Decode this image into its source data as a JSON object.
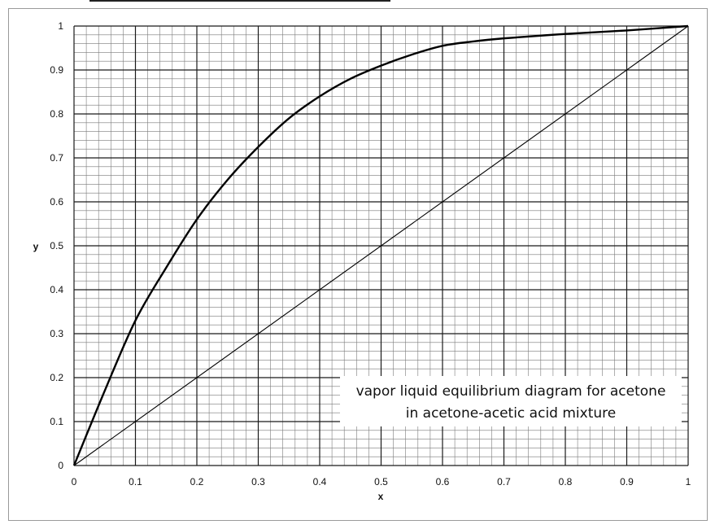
{
  "chart_data": {
    "type": "line",
    "title": "",
    "xlabel": "x",
    "ylabel": "y",
    "xlim": [
      0,
      1
    ],
    "ylim": [
      0,
      1
    ],
    "grid": true,
    "x_ticks": [
      "0",
      "0.1",
      "0.2",
      "0.3",
      "0.4",
      "0.5",
      "0.6",
      "0.7",
      "0.8",
      "0.9",
      "1"
    ],
    "y_ticks": [
      "0",
      "0.1",
      "0.2",
      "0.3",
      "0.4",
      "0.5",
      "0.6",
      "0.7",
      "0.8",
      "0.9",
      "1"
    ],
    "series": [
      {
        "x": [
          0,
          0.05,
          0.1,
          0.15,
          0.2,
          0.25,
          0.3,
          0.35,
          0.4,
          0.45,
          0.5,
          0.55,
          0.6,
          0.65,
          0.7,
          0.8,
          0.9,
          1.0
        ],
        "y": [
          0,
          0.17,
          0.33,
          0.45,
          0.56,
          0.65,
          0.725,
          0.79,
          0.84,
          0.88,
          0.91,
          0.935,
          0.955,
          0.965,
          0.972,
          0.982,
          0.99,
          1.0
        ]
      },
      {
        "x": [
          0,
          1
        ],
        "y": [
          0,
          1
        ]
      }
    ],
    "annotation": {
      "lines": [
        "vapor liquid equilibrium diagram for acetone",
        "in acetone-acetic acid mixture"
      ]
    }
  }
}
